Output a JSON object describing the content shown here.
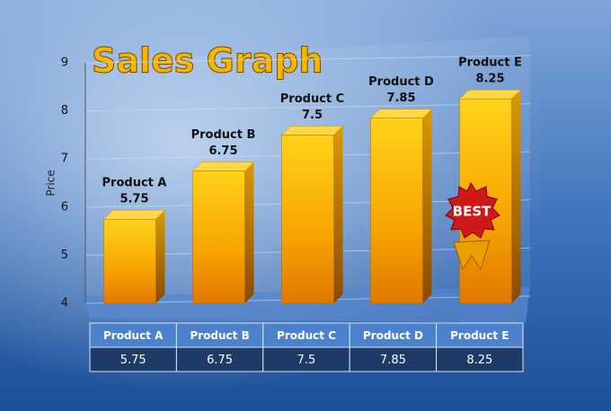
{
  "chart_data": {
    "type": "bar",
    "title": "Sales Graph",
    "y_label": "Price",
    "categories": [
      "Product A",
      "Product B",
      "Product C",
      "Product D",
      "Product E"
    ],
    "values": [
      5.75,
      6.75,
      7.5,
      7.85,
      8.25
    ],
    "ylim": [
      4,
      9
    ],
    "yticks": [
      4,
      5,
      6,
      7,
      8,
      9
    ],
    "grid": true,
    "color": "#f5a300",
    "annotation": "BEST"
  }
}
